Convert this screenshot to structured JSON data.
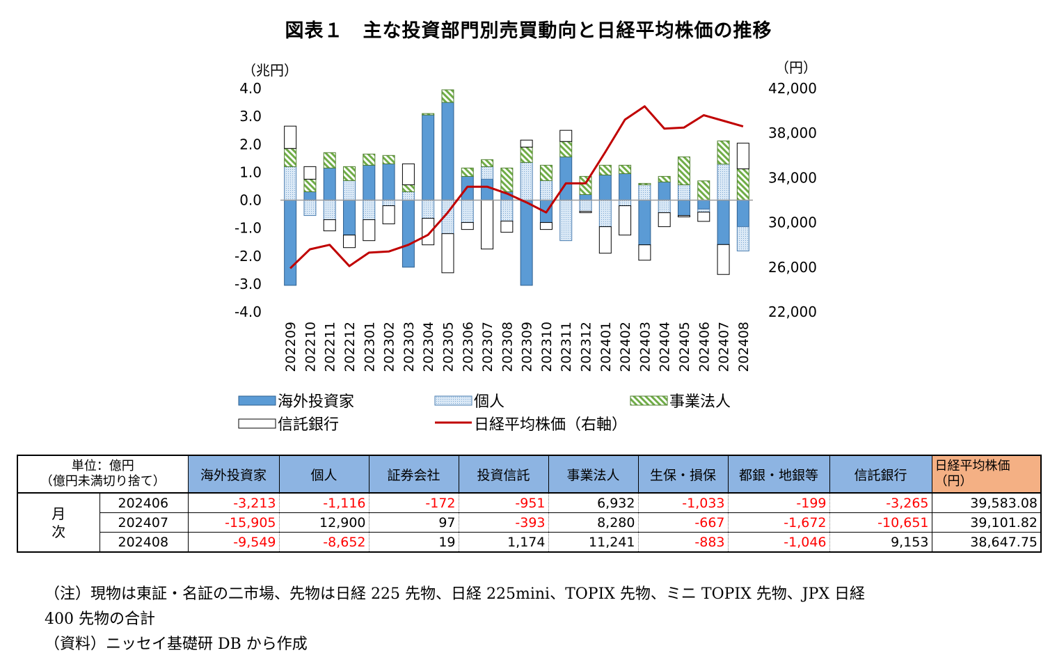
{
  "chart_data": {
    "type": "bar",
    "title": "図表１　主な投資部門別売買動向と日経平均株価の推移",
    "left_axis_unit": "（兆円）",
    "right_axis_unit": "（円）",
    "ylim": [
      -4.0,
      4.0
    ],
    "y_ticks": [
      "4.0",
      "3.0",
      "2.0",
      "1.0",
      "0.0",
      "-1.0",
      "-2.0",
      "-3.0",
      "-4.0"
    ],
    "y2lim": [
      22000,
      42000
    ],
    "y2_ticks": [
      "42,000",
      "38,000",
      "34,000",
      "30,000",
      "26,000",
      "22,000"
    ],
    "y2_tick_values": [
      42000,
      38000,
      34000,
      30000,
      26000,
      22000
    ],
    "categories": [
      "202209",
      "202210",
      "202211",
      "202212",
      "202301",
      "202302",
      "202303",
      "202304",
      "202305",
      "202306",
      "202307",
      "202308",
      "202309",
      "202310",
      "202311",
      "202312",
      "202401",
      "202402",
      "202403",
      "202404",
      "202405",
      "202406",
      "202407",
      "202408"
    ],
    "stacked": true,
    "series": [
      {
        "name": "海外投資家",
        "key": "foreign",
        "color": "#5b9bd5",
        "values": [
          -3.05,
          0.3,
          1.15,
          -1.25,
          1.25,
          1.3,
          -2.4,
          3.05,
          3.5,
          0.85,
          0.75,
          0.3,
          -3.05,
          -0.8,
          1.55,
          0.2,
          0.9,
          0.95,
          -1.6,
          0.65,
          -0.55,
          -0.32,
          -1.59,
          -0.95
        ]
      },
      {
        "name": "個人",
        "key": "individual",
        "color": "#dbe9f6",
        "values": [
          1.2,
          -0.55,
          -0.7,
          0.7,
          -0.7,
          -0.2,
          0.3,
          -0.65,
          -1.2,
          -0.8,
          0.45,
          -0.75,
          1.35,
          0.7,
          -1.45,
          -0.4,
          -0.95,
          -0.2,
          0.55,
          -0.45,
          0.55,
          -0.11,
          1.29,
          -0.87
        ]
      },
      {
        "name": "事業法人",
        "key": "corporate",
        "color": "#70ad47",
        "values": [
          0.65,
          0.45,
          0.55,
          0.5,
          0.4,
          0.3,
          0.25,
          0.05,
          0.45,
          0.3,
          0.25,
          0.85,
          0.55,
          0.55,
          0.55,
          0.65,
          0.35,
          0.3,
          0.05,
          0.2,
          1.0,
          0.69,
          0.83,
          1.12
        ]
      },
      {
        "name": "信託銀行",
        "key": "trust",
        "color": "#ffffff",
        "values": [
          0.8,
          0.45,
          -0.4,
          -0.45,
          -0.75,
          -0.65,
          0.75,
          -0.95,
          -1.4,
          -0.25,
          -1.75,
          -0.4,
          0.25,
          -0.25,
          0.4,
          -0.05,
          -0.95,
          -1.05,
          -0.55,
          -0.5,
          -0.05,
          -0.33,
          -1.07,
          0.92
        ]
      }
    ],
    "line_series": {
      "name": "日経平均株価（右軸）",
      "key": "nikkei",
      "color": "#c00000",
      "axis": "right",
      "values": [
        25900,
        27600,
        28000,
        26100,
        27300,
        27400,
        28000,
        28900,
        30900,
        33200,
        33200,
        32600,
        31800,
        30900,
        33500,
        33500,
        36300,
        39200,
        40400,
        38400,
        38500,
        39600,
        39100,
        38600
      ]
    },
    "legend": {
      "placement": "bottom",
      "items": [
        "海外投資家",
        "個人",
        "事業法人",
        "信託銀行",
        "日経平均株価（右軸）"
      ]
    }
  },
  "table": {
    "unit_label_line1": "単位：億円",
    "unit_label_line2": "（億円未満切り捨て）",
    "monthly_label_line1": "月",
    "monthly_label_line2": "次",
    "headers": [
      "海外投資家",
      "個人",
      "証券会社",
      "投資信託",
      "事業法人",
      "生保・損保",
      "都銀・地銀等",
      "信託銀行"
    ],
    "nikkei_header_line1": "日経平均株価",
    "nikkei_header_line2": "（円）",
    "rows": [
      {
        "period": "202406",
        "values": [
          "-3,213",
          "-1,116",
          "-172",
          "-951",
          "6,932",
          "-1,033",
          "-199",
          "-3,265"
        ],
        "nikkei": "39,583.08"
      },
      {
        "period": "202407",
        "values": [
          "-15,905",
          "12,900",
          "97",
          "-393",
          "8,280",
          "-667",
          "-1,672",
          "-10,651"
        ],
        "nikkei": "39,101.82"
      },
      {
        "period": "202408",
        "values": [
          "-9,549",
          "-8,652",
          "19",
          "1,174",
          "11,241",
          "-883",
          "-1,046",
          "9,153"
        ],
        "nikkei": "38,647.75"
      }
    ]
  },
  "notes": {
    "line1": "（注）現物は東証・名証の二市場、先物は日経 225 先物、日経 225mini、TOPIX 先物、ミニ TOPIX 先物、JPX 日経",
    "line2": "400 先物の合計",
    "line3": "（資料）ニッセイ基礎研 DB から作成"
  }
}
